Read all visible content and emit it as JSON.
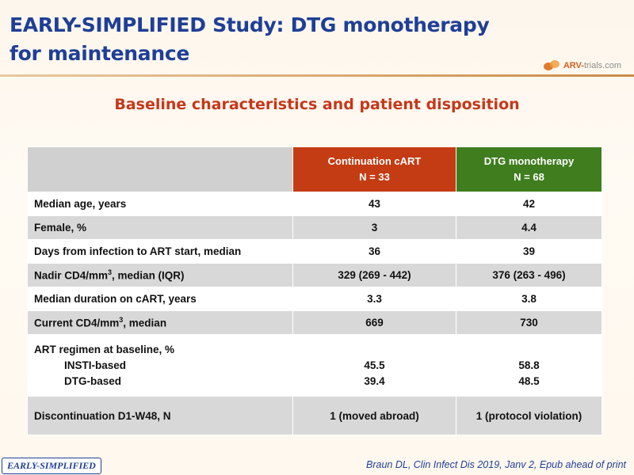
{
  "header": {
    "title_line1": "EARLY-SIMPLIFIED Study: DTG monotherapy",
    "title_line2": "for maintenance",
    "logo_text_prefix": "ARV-",
    "logo_text_suffix": "trials.com"
  },
  "subtitle": "Baseline characteristics and patient disposition",
  "table": {
    "columns": [
      {
        "name": "Continuation  cART",
        "n": "N = 33",
        "color": "#c43c14"
      },
      {
        "name": "DTG monotherapy",
        "n": "N = 68",
        "color": "#3f7d1f"
      }
    ],
    "rows": [
      {
        "label": "Median age, years",
        "cart": "43",
        "dtg": "42"
      },
      {
        "label": "Female, %",
        "cart": "3",
        "dtg": "4.4"
      },
      {
        "label": "Days from infection to ART start, median",
        "cart": "36",
        "dtg": "39"
      },
      {
        "label_before_sup": "Nadir CD4/mm",
        "label_sup": "3",
        "label_after_sup": ", median (IQR)",
        "cart": "329 (269 - 442)",
        "dtg": "376 (263 - 496)"
      },
      {
        "label": "Median duration on cART, years",
        "cart": "3.3",
        "dtg": "3.8"
      },
      {
        "label_before_sup": "Current CD4/mm",
        "label_sup": "3",
        "label_after_sup": ", median",
        "cart": "669",
        "dtg": "730"
      },
      {
        "label": "ART regimen at baseline, %",
        "sub1": "INSTI-based",
        "sub2": "DTG-based",
        "cart1": "45.5",
        "cart2": "39.4",
        "dtg1": "58.8",
        "dtg2": "48.5"
      },
      {
        "label": "Discontinuation D1-W48, N",
        "cart": "1 (moved abroad)",
        "dtg": "1 (protocol violation)"
      }
    ]
  },
  "footer": {
    "badge": "EARLY-SIMPLIFIED",
    "citation": "Braun DL, Clin Infect Dis 2019, Janv 2, Epub ahead of print"
  }
}
